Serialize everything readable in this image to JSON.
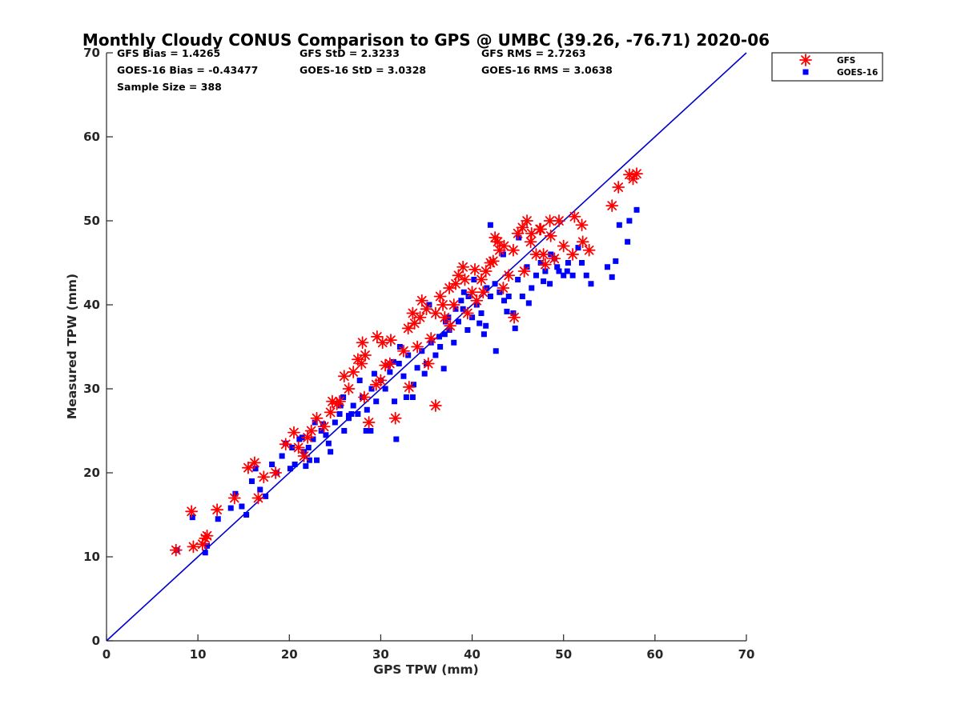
{
  "chart_data": {
    "type": "scatter",
    "title": "Monthly Cloudy CONUS Comparison to GPS @ UMBC (39.26, -76.71) 2020-06",
    "xlabel": "GPS TPW (mm)",
    "ylabel": "Measured TPW (mm)",
    "xlim": [
      0,
      70
    ],
    "ylim": [
      0,
      70
    ],
    "xticks": [
      0,
      10,
      20,
      30,
      40,
      50,
      60,
      70
    ],
    "yticks": [
      0,
      10,
      20,
      30,
      40,
      50,
      60,
      70
    ],
    "grid": false,
    "legend_position": "top-right-outside",
    "reference_line": {
      "name": "1:1",
      "color": "#0000cd",
      "x": [
        0,
        70
      ],
      "y": [
        0,
        70
      ]
    },
    "stats": {
      "gfs_bias": "GFS Bias = 1.4265",
      "goes_bias": "GOES-16 Bias = -0.43477",
      "sample_size": "Sample Size = 388",
      "gfs_std": "GFS StD = 2.3233",
      "goes_std": "GOES-16 StD = 3.0328",
      "gfs_rms": "GFS RMS = 2.7263",
      "goes_rms": "GOES-16 RMS = 3.0638"
    },
    "series": [
      {
        "name": "GFS",
        "marker": "asterisk",
        "color": "#ff0000",
        "x": [
          7.6,
          9.5,
          9.3,
          10.5,
          10.8,
          11.0,
          12.1,
          14.0,
          15.5,
          16.2,
          16.6,
          17.2,
          18.5,
          19.6,
          20.5,
          21.0,
          22.0,
          23.0,
          23.8,
          24.5,
          25.5,
          26.0,
          26.5,
          27.0,
          27.5,
          28.0,
          28.2,
          28.7,
          29.5,
          30.0,
          30.5,
          31.0,
          31.6,
          32.5,
          33.0,
          33.5,
          34.0,
          34.5,
          35.0,
          35.5,
          36.0,
          36.5,
          37.0,
          37.5,
          38.0,
          38.5,
          39.0,
          39.5,
          40.0,
          40.5,
          41.0,
          41.5,
          42.0,
          42.5,
          43.0,
          43.5,
          44.0,
          44.5,
          45.0,
          45.5,
          46.0,
          46.5,
          47.0,
          47.5,
          48.0,
          48.5,
          49.0,
          49.5,
          50.0,
          51.0,
          52.0,
          52.8,
          55.3,
          56.0,
          57.2,
          57.6,
          58.0,
          21.6,
          22.4,
          24.7,
          25.2,
          27.9,
          28.3,
          29.6,
          30.2,
          33.7,
          34.3,
          35.2,
          36.8,
          37.6,
          38.2,
          39.2,
          40.3,
          41.2,
          42.3,
          43.4,
          44.6,
          45.7,
          46.4,
          47.4,
          48.6,
          51.2,
          52.1,
          33.1,
          31.1,
          36.0,
          42.8,
          47.8
        ],
        "y": [
          10.8,
          11.2,
          15.4,
          11.5,
          12.2,
          12.5,
          15.6,
          17.0,
          20.6,
          21.2,
          17.0,
          19.5,
          20.0,
          23.4,
          24.8,
          23.0,
          24.2,
          26.5,
          25.5,
          27.2,
          28.5,
          31.5,
          30.0,
          32.0,
          33.5,
          35.5,
          29.0,
          26.0,
          30.5,
          31.0,
          32.8,
          33.0,
          26.5,
          34.5,
          37.2,
          39.0,
          35.0,
          40.5,
          39.5,
          36.0,
          39.0,
          41.0,
          38.5,
          42.0,
          40.0,
          43.5,
          44.5,
          39.0,
          41.5,
          40.5,
          43.0,
          44.0,
          45.0,
          48.0,
          46.5,
          47.0,
          43.5,
          46.5,
          48.5,
          49.2,
          50.0,
          48.5,
          46.0,
          49.0,
          44.8,
          50.0,
          45.5,
          50.0,
          47.0,
          46.0,
          49.5,
          46.5,
          51.8,
          54.0,
          55.5,
          55.0,
          55.6,
          22.0,
          25.0,
          28.5,
          28.2,
          33.0,
          34.0,
          36.2,
          35.5,
          37.8,
          38.5,
          33.0,
          40.0,
          37.5,
          42.5,
          43.0,
          44.2,
          41.5,
          45.2,
          42.0,
          38.5,
          44.0,
          47.5,
          49.0,
          48.2,
          50.5,
          47.5,
          30.2,
          35.8,
          28.0,
          47.5,
          46.0
        ]
      },
      {
        "name": "GOES-16",
        "marker": "square",
        "color": "#0000ff",
        "x": [
          7.7,
          9.4,
          10.8,
          11.0,
          12.2,
          13.6,
          14.1,
          14.8,
          15.3,
          15.9,
          16.3,
          16.8,
          17.4,
          18.1,
          18.6,
          19.2,
          19.6,
          20.1,
          20.6,
          21.1,
          21.6,
          22.1,
          22.6,
          23.0,
          23.5,
          24.0,
          24.5,
          25.0,
          25.5,
          26.0,
          26.5,
          27.0,
          27.5,
          28.0,
          28.5,
          29.0,
          29.5,
          30.0,
          30.5,
          31.0,
          31.5,
          32.0,
          32.5,
          33.0,
          33.5,
          34.0,
          34.5,
          35.0,
          35.5,
          36.0,
          36.5,
          37.0,
          37.5,
          38.0,
          38.5,
          39.0,
          39.5,
          40.0,
          40.5,
          41.0,
          41.5,
          42.0,
          42.5,
          43.0,
          43.5,
          44.0,
          44.5,
          45.0,
          45.5,
          46.0,
          46.5,
          47.0,
          47.5,
          48.0,
          48.5,
          49.0,
          49.5,
          50.0,
          50.5,
          51.0,
          52.0,
          52.5,
          55.3,
          55.7,
          57.0,
          57.2,
          58.0,
          31.7,
          32.8,
          28.4,
          26.5,
          25.9,
          42.0,
          43.4,
          45.1,
          48.6,
          50.4,
          35.3,
          37.4,
          38.8,
          41.6,
          40.2,
          39.1,
          33.6,
          34.8,
          36.9,
          24.3,
          22.8,
          21.4,
          20.3,
          23.7,
          22.2,
          21.8,
          25.6,
          26.8,
          27.7,
          29.3,
          30.8,
          31.4,
          32.1,
          28.9,
          36.4,
          37.1,
          38.2,
          39.6,
          40.8,
          41.3,
          42.6,
          43.8,
          44.7,
          46.2,
          47.8,
          49.3,
          51.6,
          53.0,
          54.8,
          56.1
        ],
        "y": [
          10.8,
          14.7,
          10.5,
          11.3,
          14.5,
          15.8,
          17.5,
          16.0,
          15.0,
          19.0,
          20.5,
          18.0,
          17.2,
          21.0,
          20.0,
          22.0,
          23.5,
          20.5,
          21.0,
          24.0,
          22.5,
          23.0,
          24.0,
          21.5,
          25.0,
          24.5,
          22.5,
          26.0,
          27.0,
          25.0,
          26.5,
          28.0,
          27.0,
          29.0,
          27.5,
          30.0,
          28.5,
          31.0,
          30.0,
          32.0,
          28.5,
          33.0,
          31.5,
          34.0,
          29.0,
          32.5,
          34.5,
          33.0,
          35.5,
          34.0,
          35.0,
          36.5,
          37.0,
          35.5,
          38.0,
          39.5,
          37.0,
          38.5,
          40.0,
          39.0,
          37.5,
          41.0,
          42.5,
          41.5,
          40.5,
          41.0,
          39.0,
          43.0,
          41.0,
          44.5,
          42.0,
          43.5,
          45.0,
          44.0,
          42.5,
          45.5,
          44.0,
          43.5,
          45.0,
          43.5,
          45.0,
          43.5,
          43.3,
          45.2,
          47.5,
          50.0,
          51.3,
          24.0,
          29.0,
          25.0,
          26.8,
          29.0,
          49.5,
          46.0,
          48.0,
          46.0,
          44.0,
          40.0,
          38.5,
          40.5,
          42.0,
          43.0,
          41.5,
          30.5,
          31.8,
          32.4,
          23.5,
          26.0,
          24.2,
          23.0,
          25.8,
          21.5,
          20.8,
          28.0,
          27.0,
          31.0,
          31.8,
          32.8,
          33.2,
          35.0,
          25.0,
          36.2,
          38.0,
          39.5,
          41.0,
          37.8,
          36.5,
          34.5,
          39.2,
          37.2,
          40.2,
          42.8,
          44.5,
          46.8,
          42.5,
          44.5,
          49.5
        ]
      }
    ]
  }
}
